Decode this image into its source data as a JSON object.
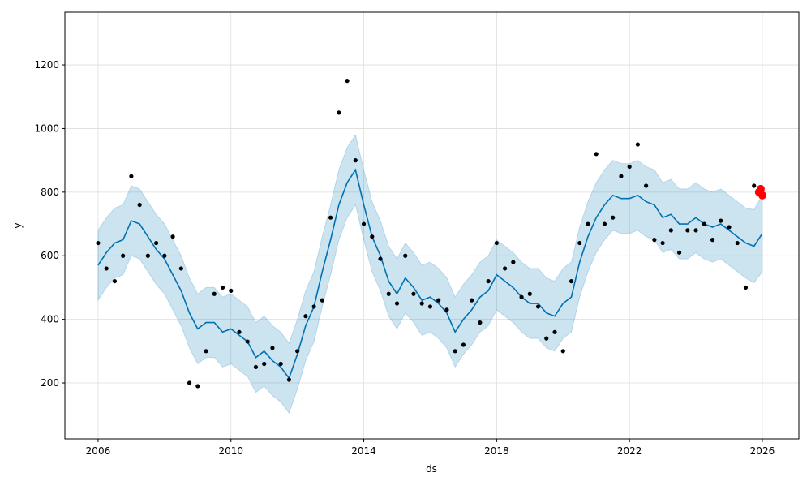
{
  "chart_data": {
    "type": "forecast",
    "x_label": "ds",
    "y_label": "y",
    "xlim": [
      2005.0,
      2027.1
    ],
    "ylim": [
      24,
      1366
    ],
    "xticks": [
      2006,
      2010,
      2014,
      2018,
      2022,
      2026
    ],
    "yticks": [
      200,
      400,
      600,
      800,
      1000,
      1200
    ],
    "grid": true,
    "x": [
      2006.0,
      2006.25,
      2006.5,
      2006.75,
      2007.0,
      2007.25,
      2007.5,
      2007.75,
      2008.0,
      2008.25,
      2008.5,
      2008.75,
      2009.0,
      2009.25,
      2009.5,
      2009.75,
      2010.0,
      2010.25,
      2010.5,
      2010.75,
      2011.0,
      2011.25,
      2011.5,
      2011.75,
      2012.0,
      2012.25,
      2012.5,
      2012.75,
      2013.0,
      2013.25,
      2013.5,
      2013.75,
      2014.0,
      2014.25,
      2014.5,
      2014.75,
      2015.0,
      2015.25,
      2015.5,
      2015.75,
      2016.0,
      2016.25,
      2016.5,
      2016.75,
      2017.0,
      2017.25,
      2017.5,
      2017.75,
      2018.0,
      2018.25,
      2018.5,
      2018.75,
      2019.0,
      2019.25,
      2019.5,
      2019.75,
      2020.0,
      2020.25,
      2020.5,
      2020.75,
      2021.0,
      2021.25,
      2021.5,
      2021.75,
      2022.0,
      2022.25,
      2022.5,
      2022.75,
      2023.0,
      2023.25,
      2023.5,
      2023.75,
      2024.0,
      2024.25,
      2024.5,
      2024.75,
      2025.0,
      2025.25,
      2025.5,
      2025.75,
      2026.0
    ],
    "series": [
      {
        "type": "band",
        "color": "#0072B2",
        "lower": [
          460,
          500,
          530,
          540,
          600,
          590,
          550,
          510,
          480,
          430,
          380,
          310,
          260,
          280,
          280,
          250,
          260,
          240,
          220,
          170,
          190,
          160,
          140,
          105,
          180,
          270,
          330,
          440,
          540,
          650,
          720,
          760,
          650,
          550,
          490,
          410,
          370,
          420,
          390,
          350,
          360,
          340,
          310,
          250,
          290,
          320,
          360,
          380,
          430,
          410,
          390,
          360,
          340,
          340,
          310,
          300,
          340,
          360,
          470,
          550,
          610,
          650,
          680,
          670,
          670,
          680,
          660,
          650,
          610,
          620,
          590,
          590,
          610,
          590,
          580,
          590,
          570,
          550,
          530,
          515,
          550
        ],
        "upper": [
          680,
          720,
          750,
          760,
          820,
          810,
          770,
          730,
          700,
          650,
          600,
          530,
          480,
          500,
          500,
          470,
          480,
          460,
          440,
          390,
          410,
          380,
          360,
          325,
          400,
          490,
          550,
          660,
          760,
          870,
          940,
          980,
          870,
          770,
          710,
          630,
          590,
          640,
          610,
          570,
          580,
          560,
          530,
          470,
          510,
          540,
          580,
          600,
          650,
          630,
          610,
          580,
          560,
          560,
          530,
          520,
          560,
          580,
          690,
          770,
          830,
          870,
          900,
          890,
          890,
          900,
          880,
          870,
          830,
          840,
          810,
          810,
          830,
          810,
          800,
          810,
          790,
          770,
          750,
          745,
          790
        ]
      },
      {
        "type": "line",
        "color": "#0072B2",
        "values": [
          570,
          610,
          640,
          650,
          710,
          700,
          660,
          620,
          590,
          540,
          490,
          420,
          370,
          390,
          390,
          360,
          370,
          350,
          330,
          280,
          300,
          270,
          250,
          215,
          290,
          380,
          440,
          550,
          650,
          760,
          830,
          870,
          760,
          660,
          600,
          520,
          480,
          530,
          500,
          460,
          470,
          450,
          420,
          360,
          400,
          430,
          470,
          490,
          540,
          520,
          500,
          470,
          450,
          450,
          420,
          410,
          450,
          470,
          580,
          660,
          720,
          760,
          790,
          780,
          780,
          790,
          770,
          760,
          720,
          730,
          700,
          700,
          720,
          700,
          690,
          700,
          680,
          660,
          640,
          630,
          670
        ]
      },
      {
        "type": "scatter",
        "color": "#000000",
        "values": [
          640,
          560,
          520,
          600,
          850,
          760,
          600,
          640,
          600,
          660,
          560,
          200,
          190,
          300,
          480,
          500,
          490,
          360,
          330,
          250,
          260,
          310,
          260,
          210,
          300,
          410,
          440,
          460,
          720,
          1050,
          1150,
          900,
          700,
          660,
          590,
          480,
          450,
          600,
          480,
          450,
          440,
          460,
          430,
          300,
          320,
          460,
          390,
          520,
          640,
          560,
          580,
          470,
          480,
          440,
          340,
          360,
          300,
          520,
          640,
          700,
          920,
          700,
          720,
          850,
          880,
          950,
          820,
          650,
          640,
          680,
          610,
          680,
          680,
          700,
          650,
          710,
          690,
          640,
          500,
          820,
          null
        ]
      },
      {
        "type": "scatter",
        "color": "#ff0000",
        "x": [
          2025.9,
          2025.95,
          2026.0
        ],
        "values": [
          800,
          810,
          790
        ]
      }
    ]
  }
}
